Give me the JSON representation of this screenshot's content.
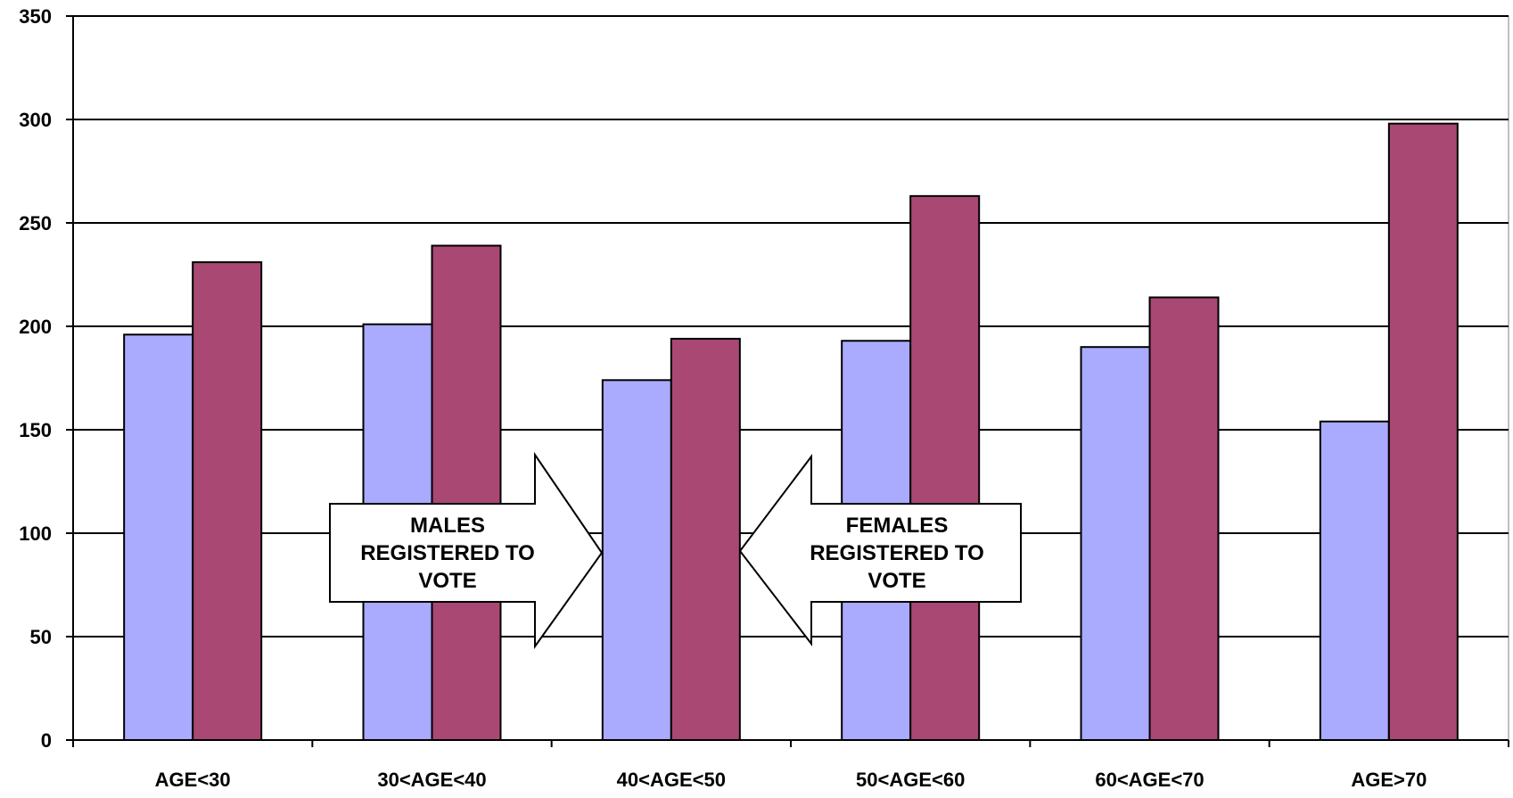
{
  "chart_data": {
    "type": "bar",
    "categories": [
      "AGE<30",
      "30<AGE<40",
      "40<AGE<50",
      "50<AGE<60",
      "60<AGE<70",
      "AGE>70"
    ],
    "series": [
      {
        "values": [
          196,
          201,
          174,
          193,
          190,
          154
        ],
        "color": "#aaaaff"
      },
      {
        "values": [
          231,
          239,
          194,
          263,
          214,
          298
        ],
        "color": "#a84873"
      }
    ],
    "ylim": [
      0,
      350
    ],
    "yticks": [
      0,
      50,
      100,
      150,
      200,
      250,
      300,
      350
    ],
    "xlabel": "",
    "ylabel": "",
    "title": "",
    "grid": true,
    "annotations": [
      {
        "lines": [
          "MALES",
          "REGISTERED TO",
          "VOTE"
        ],
        "direction": "right",
        "points_to": "40<AGE<50"
      },
      {
        "lines": [
          "FEMALES",
          "REGISTERED TO",
          "VOTE"
        ],
        "direction": "left",
        "points_to": "40<AGE<50"
      }
    ]
  }
}
